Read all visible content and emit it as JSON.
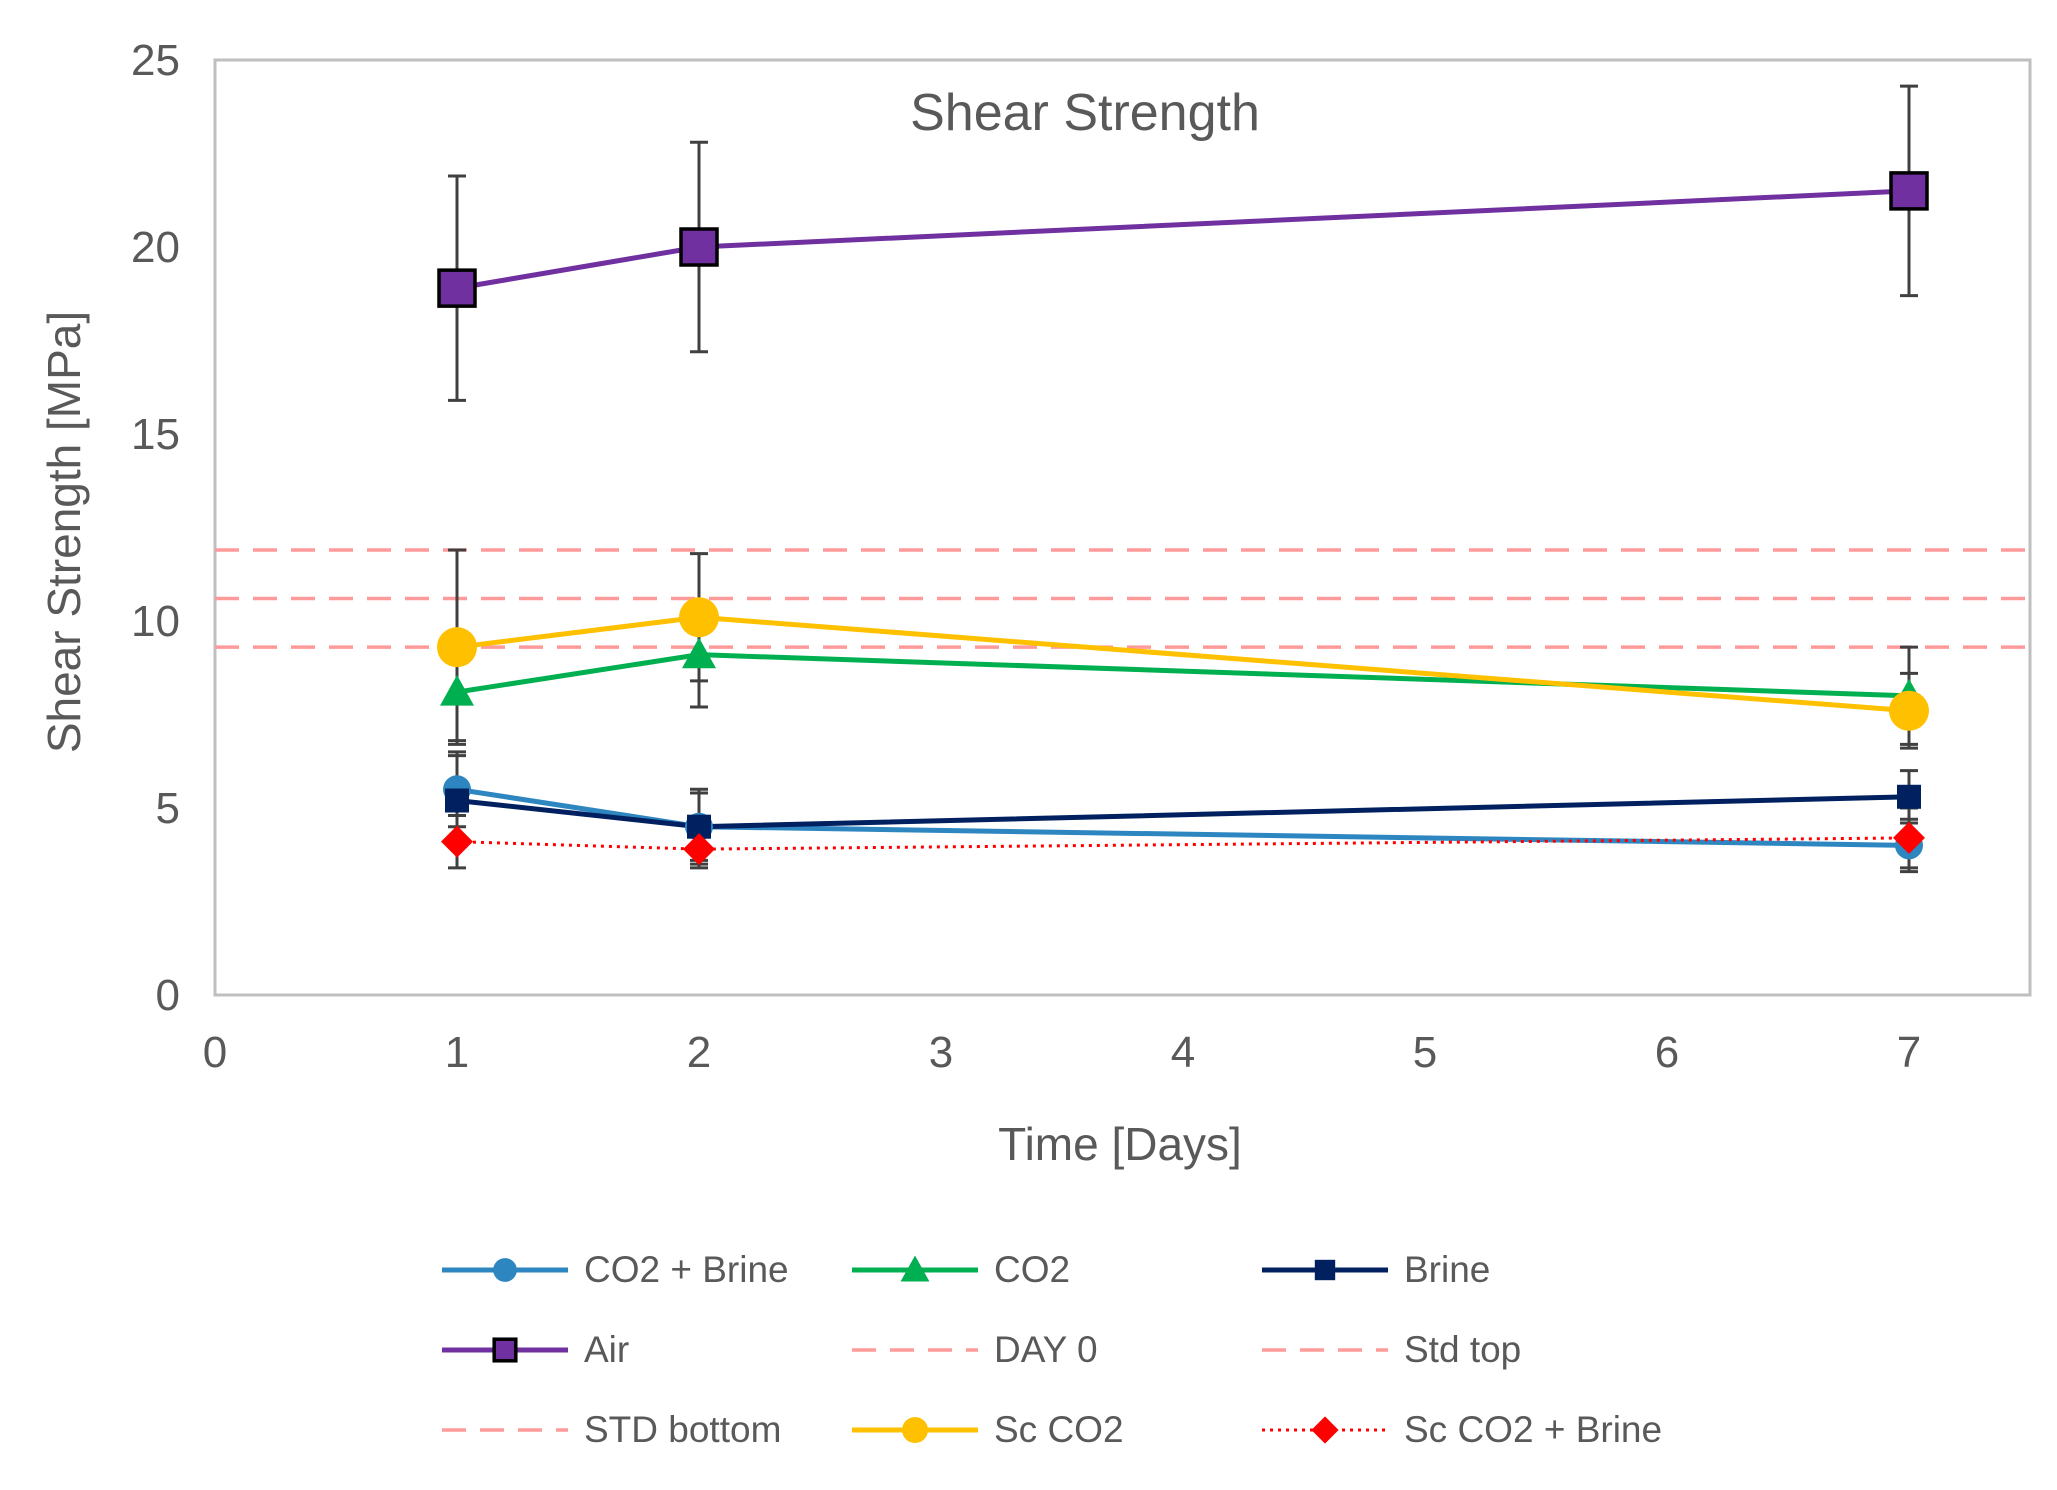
{
  "chart_data": {
    "type": "line",
    "title": "Shear Strength",
    "xlabel": "Time [Days]",
    "ylabel": "Shear Strength [MPa]",
    "xlim": [
      0,
      7.5
    ],
    "ylim": [
      0,
      25
    ],
    "xticks": [
      "0",
      "1",
      "2",
      "3",
      "4",
      "5",
      "6",
      "7"
    ],
    "yticks": [
      "0",
      "5",
      "10",
      "15",
      "20",
      "25"
    ],
    "x": [
      1,
      2,
      7
    ],
    "series": [
      {
        "name": "CO2 + Brine",
        "values": [
          5.5,
          4.5,
          4.0
        ],
        "error": [
          1.0,
          0.9,
          0.7
        ],
        "color": "#2E86C1",
        "marker": "circle",
        "line": "solid"
      },
      {
        "name": "CO2",
        "values": [
          8.1,
          9.1,
          8.0
        ],
        "error": [
          1.3,
          1.4,
          1.3
        ],
        "color": "#00B050",
        "marker": "triangle",
        "line": "solid"
      },
      {
        "name": "Brine",
        "values": [
          5.2,
          4.5,
          5.3
        ],
        "error": [
          1.2,
          1.0,
          0.7
        ],
        "color": "#002060",
        "marker": "square",
        "line": "solid"
      },
      {
        "name": "Air",
        "values": [
          18.9,
          20.0,
          21.5
        ],
        "error": [
          3.0,
          2.8,
          2.8
        ],
        "color": "#7030A0",
        "marker": "square-outlined",
        "line": "solid"
      },
      {
        "name": "Sc CO2",
        "values": [
          9.3,
          10.1,
          7.6
        ],
        "error": [
          2.6,
          1.7,
          1.0
        ],
        "color": "#FFC000",
        "marker": "circle-large",
        "line": "solid"
      },
      {
        "name": "Sc CO2 + Brine",
        "values": [
          4.1,
          3.9,
          4.2
        ],
        "error": [
          0.7,
          0.5,
          0.8
        ],
        "color": "#FF0000",
        "marker": "diamond",
        "line": "dotted"
      }
    ],
    "reference_lines": [
      {
        "name": "DAY 0",
        "value": 10.6,
        "color": "#FF9A9A",
        "line": "dashed"
      },
      {
        "name": "Std top",
        "value": 11.9,
        "color": "#FF9A9A",
        "line": "dashed"
      },
      {
        "name": "STD bottom",
        "value": 9.3,
        "color": "#FF9A9A",
        "line": "dashed"
      }
    ],
    "legend_order": [
      "CO2 + Brine",
      "CO2",
      "Brine",
      "Air",
      "DAY 0",
      "Std top",
      "STD bottom",
      "Sc CO2",
      "Sc CO2 + Brine"
    ],
    "legend_position": "bottom"
  },
  "colors": {
    "axis": "#BFBFBF",
    "text": "#595959",
    "error_bar": "#404040"
  }
}
